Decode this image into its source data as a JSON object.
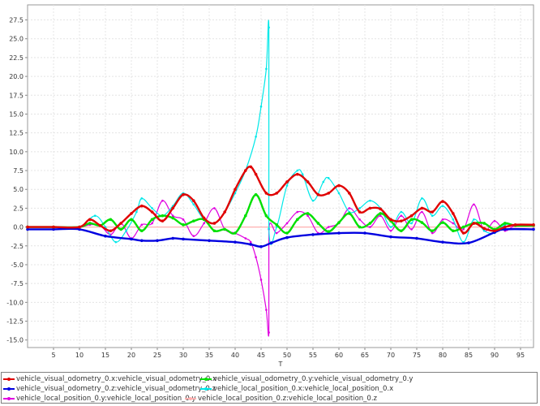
{
  "chart_data": {
    "type": "line",
    "title": "",
    "xlabel": "T",
    "ylabel": "",
    "xlim": [
      0,
      97.5
    ],
    "ylim": [
      -16,
      29.5
    ],
    "xticks": [
      5,
      10,
      15,
      20,
      25,
      30,
      35,
      40,
      45,
      50,
      55,
      60,
      65,
      70,
      75,
      80,
      85,
      90,
      95
    ],
    "yticks": [
      -15,
      -12.5,
      -10,
      -7.5,
      -5,
      -2.5,
      0,
      2.5,
      5,
      7.5,
      10,
      12.5,
      15,
      17.5,
      20,
      22.5,
      25,
      27.5
    ],
    "ytick_labels": [
      "-15.0",
      "-12.5",
      "-10.0",
      "-7.5",
      "-5.0",
      "-2.5",
      "0.0",
      "2.5",
      "5.0",
      "7.5",
      "10.0",
      "12.5",
      "15.0",
      "17.5",
      "20.0",
      "22.5",
      "25.0",
      "27.5"
    ],
    "grid": true,
    "legend_position": "bottom",
    "series": [
      {
        "name": "vehicle_visual_odometry_0.x:vehicle_visual_odometry_0.x",
        "color": "#e00000",
        "x": [
          0,
          5,
          10,
          12,
          14,
          16,
          18,
          20,
          22,
          24,
          26,
          28,
          30,
          32,
          34,
          36,
          38,
          40,
          42,
          43,
          44,
          46,
          48,
          50,
          52,
          54,
          56,
          58,
          60,
          62,
          64,
          66,
          68,
          70,
          72,
          74,
          76,
          78,
          80,
          82,
          84,
          86,
          88,
          90,
          92,
          94,
          97.5
        ],
        "y": [
          0,
          0,
          0,
          1,
          0.2,
          -0.5,
          0.5,
          1.8,
          2.8,
          2,
          0.8,
          2.5,
          4.3,
          3.5,
          1.2,
          0.5,
          2,
          5,
          7.5,
          8,
          7,
          4.5,
          4.5,
          6,
          7,
          6,
          4.3,
          4.5,
          5.5,
          4.5,
          2,
          2.5,
          2.4,
          1,
          0.8,
          1.5,
          2.5,
          2,
          3.4,
          1.8,
          -0.8,
          0.5,
          -0.2,
          -0.5,
          0,
          0.3,
          0.3
        ]
      },
      {
        "name": "vehicle_visual_odometry_0.y:vehicle_visual_odometry_0.y",
        "color": "#00e000",
        "x": [
          0,
          5,
          10,
          12,
          14,
          16,
          18,
          20,
          22,
          24,
          26,
          28,
          30,
          32,
          34,
          36,
          38,
          40,
          42,
          44,
          46,
          48,
          50,
          52,
          54,
          56,
          58,
          60,
          62,
          64,
          66,
          68,
          70,
          72,
          74,
          76,
          78,
          80,
          82,
          84,
          86,
          88,
          90,
          92,
          94,
          97.5
        ],
        "y": [
          0,
          0,
          0,
          0.5,
          0.2,
          1,
          -0.3,
          1,
          -0.5,
          1,
          1.5,
          1.2,
          0.3,
          0.8,
          1,
          -0.5,
          -0.3,
          -0.8,
          1.5,
          4.3,
          1.5,
          0.3,
          -0.8,
          1,
          1.8,
          0.5,
          -0.6,
          0.6,
          1.8,
          0,
          0.5,
          1.8,
          0.8,
          -0.5,
          1,
          0.6,
          -0.5,
          0.6,
          -0.5,
          0,
          0.5,
          0.5,
          -0.3,
          0.5,
          0.2,
          0.2
        ]
      },
      {
        "name": "vehicle_visual_odometry_0.z:vehicle_visual_odometry_0.z",
        "color": "#0000e0",
        "x": [
          0,
          5,
          10,
          15,
          20,
          22,
          25,
          28,
          30,
          35,
          40,
          43,
          45,
          47,
          50,
          55,
          60,
          65,
          70,
          75,
          80,
          85,
          90,
          92,
          97.5
        ],
        "y": [
          -0.3,
          -0.3,
          -0.3,
          -1.2,
          -1.6,
          -1.8,
          -1.8,
          -1.5,
          -1.6,
          -1.8,
          -2,
          -2.3,
          -2.6,
          -2.1,
          -1.4,
          -1,
          -0.8,
          -0.8,
          -1.3,
          -1.5,
          -2,
          -2.1,
          -0.7,
          -0.3,
          -0.3
        ]
      },
      {
        "name": "vehicle_local_position_0.x:vehicle_local_position_0.x",
        "color": "#00e8e8",
        "x": [
          0,
          5,
          10,
          13,
          15,
          17,
          19,
          21,
          22,
          24,
          26,
          28,
          30,
          32,
          34,
          36,
          38,
          40,
          42,
          44,
          45,
          46,
          46.5,
          46.5,
          48,
          50,
          52,
          53,
          55,
          57,
          58,
          60,
          62,
          64,
          66,
          68,
          70,
          72,
          74,
          76,
          78,
          80,
          82,
          84,
          86,
          88,
          90,
          92,
          94,
          97.5
        ],
        "y": [
          0,
          0,
          0,
          1.5,
          0,
          -2,
          -0.5,
          2,
          3.8,
          2.5,
          1.5,
          2.8,
          4.5,
          3,
          1,
          0.5,
          2,
          4.5,
          7.5,
          12,
          16,
          21,
          26.5,
          -0.2,
          0,
          5.5,
          7.5,
          7,
          3.5,
          6,
          6.5,
          4.5,
          2,
          2.5,
          3.5,
          2.5,
          0,
          2,
          0.5,
          3.8,
          1.5,
          2.8,
          1,
          -2,
          1,
          -0.5,
          -0.8,
          0.3,
          0.3,
          0.3
        ]
      },
      {
        "name": "vehicle_local_position_0.y:vehicle_local_position_0.y",
        "color": "#e000e0",
        "x": [
          0,
          5,
          10,
          12,
          14,
          16,
          18,
          20,
          22,
          24,
          26,
          28,
          30,
          32,
          34,
          36,
          38,
          40,
          42,
          43,
          44,
          45,
          46,
          46.5,
          46.5,
          48,
          50,
          52,
          54,
          56,
          58,
          60,
          62,
          64,
          66,
          68,
          70,
          72,
          74,
          76,
          78,
          80,
          82,
          84,
          86,
          88,
          90,
          92,
          94,
          97.5
        ],
        "y": [
          0,
          0,
          0,
          0.3,
          0.2,
          -1,
          0.5,
          -1.5,
          0.3,
          0.5,
          3.5,
          1.5,
          1,
          -1.2,
          0.5,
          2.5,
          -0.3,
          -0.8,
          -1.5,
          -2,
          -4,
          -7,
          -11,
          -14,
          -0.3,
          -0.8,
          0.5,
          2,
          1.5,
          -0.8,
          0,
          0.5,
          2.5,
          1,
          0,
          1.5,
          -0.5,
          1.5,
          -0.3,
          2,
          -0.8,
          1,
          0.5,
          -0.3,
          3,
          -0.5,
          0.8,
          -0.5,
          0.2,
          0.2
        ]
      },
      {
        "name": "vehicle_local_position_0.z:vehicle_local_position_0.z",
        "color": "#ffb0b0",
        "x": [
          0,
          97.5
        ],
        "y": [
          0,
          0
        ]
      }
    ]
  }
}
